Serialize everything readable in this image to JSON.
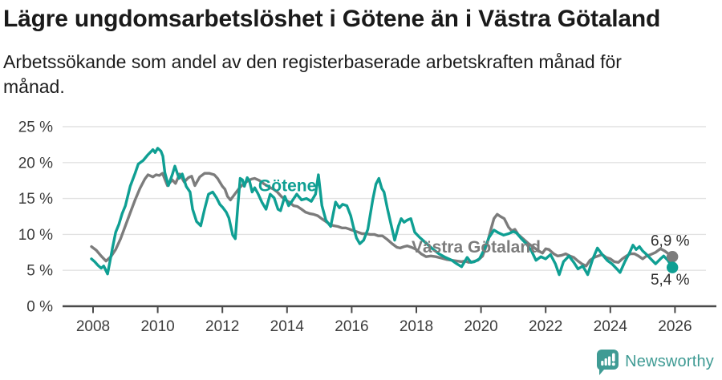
{
  "header": {
    "title": "Lägre ungdomsarbetslöshet i Götene än i Västra Götaland",
    "subtitle": "Arbetssökande som andel av den registerbaserade arbetskraften månad för månad."
  },
  "chart_data": {
    "type": "line",
    "title": "Lägre ungdomsarbetslöshet i Götene än i Västra Götaland",
    "xlabel": "",
    "ylabel": "",
    "y_unit": "%",
    "ylim": [
      0,
      25
    ],
    "xlim": [
      2007.9,
      2026.45
    ],
    "grid": "horizontal",
    "legend_position": "inline-labels",
    "x_ticks": [
      2008,
      2010,
      2012,
      2014,
      2016,
      2018,
      2020,
      2022,
      2024,
      2026
    ],
    "y_tick_labels": [
      "0 %",
      "5 %",
      "10 %",
      "15 %",
      "20 %",
      "25 %"
    ],
    "series": [
      {
        "name": "Götene",
        "color": "#0f9f93",
        "end_label": "5,4 %",
        "last_value": 5.4,
        "label_anchor": {
          "x": 2013.11,
          "y": 16.0
        },
        "end_label_anchor": {
          "x": 2026.45,
          "y": 3.0
        },
        "points": [
          [
            2007.95,
            6.6
          ],
          [
            2008.05,
            6.2
          ],
          [
            2008.15,
            5.7
          ],
          [
            2008.25,
            5.3
          ],
          [
            2008.33,
            5.6
          ],
          [
            2008.45,
            4.5
          ],
          [
            2008.52,
            6.2
          ],
          [
            2008.6,
            8.1
          ],
          [
            2008.7,
            10.3
          ],
          [
            2008.8,
            11.4
          ],
          [
            2008.9,
            12.9
          ],
          [
            2009.0,
            14.0
          ],
          [
            2009.15,
            16.7
          ],
          [
            2009.3,
            18.5
          ],
          [
            2009.4,
            19.8
          ],
          [
            2009.55,
            20.3
          ],
          [
            2009.7,
            21.1
          ],
          [
            2009.85,
            21.8
          ],
          [
            2009.92,
            21.4
          ],
          [
            2010.0,
            22.0
          ],
          [
            2010.1,
            21.6
          ],
          [
            2010.16,
            20.9
          ],
          [
            2010.22,
            18.6
          ],
          [
            2010.33,
            16.8
          ],
          [
            2010.45,
            18.3
          ],
          [
            2010.53,
            19.5
          ],
          [
            2010.66,
            17.8
          ],
          [
            2010.76,
            18.4
          ],
          [
            2010.88,
            16.7
          ],
          [
            2011.0,
            15.9
          ],
          [
            2011.08,
            13.5
          ],
          [
            2011.2,
            11.8
          ],
          [
            2011.33,
            11.2
          ],
          [
            2011.45,
            13.5
          ],
          [
            2011.57,
            15.6
          ],
          [
            2011.7,
            15.9
          ],
          [
            2011.82,
            15.1
          ],
          [
            2011.92,
            14.2
          ],
          [
            2012.02,
            13.7
          ],
          [
            2012.12,
            13.1
          ],
          [
            2012.2,
            12.3
          ],
          [
            2012.32,
            9.9
          ],
          [
            2012.4,
            9.4
          ],
          [
            2012.48,
            14.0
          ],
          [
            2012.55,
            17.8
          ],
          [
            2012.62,
            17.6
          ],
          [
            2012.68,
            16.7
          ],
          [
            2012.77,
            17.9
          ],
          [
            2012.84,
            17.4
          ],
          [
            2012.92,
            15.9
          ],
          [
            2013.0,
            16.5
          ],
          [
            2013.1,
            15.7
          ],
          [
            2013.22,
            14.5
          ],
          [
            2013.35,
            13.5
          ],
          [
            2013.48,
            15.6
          ],
          [
            2013.6,
            15.1
          ],
          [
            2013.72,
            13.5
          ],
          [
            2013.8,
            13.3
          ],
          [
            2013.93,
            15.3
          ],
          [
            2014.05,
            14.0
          ],
          [
            2014.15,
            14.6
          ],
          [
            2014.3,
            15.6
          ],
          [
            2014.45,
            14.8
          ],
          [
            2014.6,
            15.0
          ],
          [
            2014.75,
            14.6
          ],
          [
            2014.88,
            15.6
          ],
          [
            2014.97,
            18.3
          ],
          [
            2015.08,
            14.0
          ],
          [
            2015.2,
            12.0
          ],
          [
            2015.35,
            11.1
          ],
          [
            2015.5,
            14.5
          ],
          [
            2015.62,
            13.7
          ],
          [
            2015.72,
            14.2
          ],
          [
            2015.85,
            14.0
          ],
          [
            2015.97,
            12.6
          ],
          [
            2016.05,
            11.1
          ],
          [
            2016.15,
            9.5
          ],
          [
            2016.25,
            8.7
          ],
          [
            2016.37,
            9.2
          ],
          [
            2016.5,
            10.7
          ],
          [
            2016.65,
            14.8
          ],
          [
            2016.75,
            17.0
          ],
          [
            2016.84,
            17.8
          ],
          [
            2016.93,
            16.4
          ],
          [
            2017.0,
            15.9
          ],
          [
            2017.1,
            13.7
          ],
          [
            2017.2,
            11.7
          ],
          [
            2017.33,
            9.2
          ],
          [
            2017.45,
            11.2
          ],
          [
            2017.53,
            12.2
          ],
          [
            2017.62,
            11.7
          ],
          [
            2017.72,
            12.0
          ],
          [
            2017.83,
            12.2
          ],
          [
            2017.95,
            10.3
          ],
          [
            2018.1,
            9.6
          ],
          [
            2018.3,
            8.8
          ],
          [
            2018.5,
            8.0
          ],
          [
            2018.7,
            7.3
          ],
          [
            2018.9,
            6.8
          ],
          [
            2019.1,
            6.4
          ],
          [
            2019.25,
            5.9
          ],
          [
            2019.4,
            5.5
          ],
          [
            2019.57,
            6.8
          ],
          [
            2019.69,
            6.1
          ],
          [
            2019.8,
            6.2
          ],
          [
            2019.95,
            6.6
          ],
          [
            2020.1,
            7.9
          ],
          [
            2020.25,
            9.6
          ],
          [
            2020.4,
            10.6
          ],
          [
            2020.55,
            10.2
          ],
          [
            2020.7,
            9.9
          ],
          [
            2020.85,
            10.1
          ],
          [
            2021.0,
            10.4
          ],
          [
            2021.1,
            10.2
          ],
          [
            2021.25,
            9.4
          ],
          [
            2021.4,
            8.7
          ],
          [
            2021.55,
            7.8
          ],
          [
            2021.7,
            6.4
          ],
          [
            2021.85,
            6.9
          ],
          [
            2022.0,
            6.6
          ],
          [
            2022.15,
            7.2
          ],
          [
            2022.3,
            5.9
          ],
          [
            2022.42,
            4.4
          ],
          [
            2022.55,
            6.2
          ],
          [
            2022.72,
            7.0
          ],
          [
            2022.87,
            6.1
          ],
          [
            2023.0,
            5.2
          ],
          [
            2023.15,
            5.6
          ],
          [
            2023.3,
            4.4
          ],
          [
            2023.45,
            6.5
          ],
          [
            2023.6,
            8.1
          ],
          [
            2023.75,
            7.2
          ],
          [
            2023.9,
            6.4
          ],
          [
            2024.05,
            5.9
          ],
          [
            2024.2,
            5.2
          ],
          [
            2024.3,
            4.7
          ],
          [
            2024.45,
            6.2
          ],
          [
            2024.6,
            7.5
          ],
          [
            2024.7,
            8.5
          ],
          [
            2024.8,
            7.9
          ],
          [
            2024.9,
            8.3
          ],
          [
            2025.0,
            7.7
          ],
          [
            2025.1,
            7.3
          ],
          [
            2025.25,
            6.6
          ],
          [
            2025.4,
            5.9
          ],
          [
            2025.55,
            6.6
          ],
          [
            2025.65,
            7.0
          ],
          [
            2025.78,
            6.4
          ],
          [
            2025.92,
            5.4
          ]
        ]
      },
      {
        "name": "Västra Götaland",
        "color": "#7c7c7c",
        "end_label": "6,9 %",
        "last_value": 6.9,
        "label_anchor": {
          "x": 2017.85,
          "y": 7.5
        },
        "end_label_anchor": {
          "x": 2026.45,
          "y": 8.4
        },
        "points": [
          [
            2007.95,
            8.3
          ],
          [
            2008.1,
            7.8
          ],
          [
            2008.25,
            7.0
          ],
          [
            2008.4,
            6.3
          ],
          [
            2008.55,
            6.9
          ],
          [
            2008.7,
            7.9
          ],
          [
            2008.85,
            9.4
          ],
          [
            2009.0,
            11.2
          ],
          [
            2009.15,
            13.0
          ],
          [
            2009.3,
            14.8
          ],
          [
            2009.45,
            16.4
          ],
          [
            2009.6,
            17.7
          ],
          [
            2009.7,
            18.3
          ],
          [
            2009.85,
            18.0
          ],
          [
            2009.95,
            18.3
          ],
          [
            2010.05,
            18.2
          ],
          [
            2010.15,
            18.5
          ],
          [
            2010.3,
            16.8
          ],
          [
            2010.45,
            17.6
          ],
          [
            2010.55,
            17.1
          ],
          [
            2010.68,
            18.4
          ],
          [
            2010.82,
            17.3
          ],
          [
            2010.95,
            17.9
          ],
          [
            2011.05,
            18.1
          ],
          [
            2011.15,
            16.8
          ],
          [
            2011.3,
            18.0
          ],
          [
            2011.45,
            18.5
          ],
          [
            2011.6,
            18.5
          ],
          [
            2011.75,
            18.3
          ],
          [
            2011.85,
            17.8
          ],
          [
            2012.0,
            16.7
          ],
          [
            2012.08,
            16.3
          ],
          [
            2012.16,
            15.3
          ],
          [
            2012.25,
            14.8
          ],
          [
            2012.35,
            15.4
          ],
          [
            2012.45,
            16.0
          ],
          [
            2012.55,
            16.6
          ],
          [
            2012.65,
            17.0
          ],
          [
            2012.77,
            17.4
          ],
          [
            2012.9,
            17.7
          ],
          [
            2013.0,
            17.8
          ],
          [
            2013.15,
            17.5
          ],
          [
            2013.3,
            17.0
          ],
          [
            2013.45,
            16.6
          ],
          [
            2013.58,
            16.3
          ],
          [
            2013.7,
            15.9
          ],
          [
            2013.82,
            15.3
          ],
          [
            2013.95,
            14.8
          ],
          [
            2014.07,
            14.5
          ],
          [
            2014.2,
            14.0
          ],
          [
            2014.32,
            13.9
          ],
          [
            2014.45,
            13.5
          ],
          [
            2014.57,
            13.1
          ],
          [
            2014.7,
            12.9
          ],
          [
            2014.82,
            12.8
          ],
          [
            2014.95,
            12.6
          ],
          [
            2015.07,
            12.2
          ],
          [
            2015.2,
            11.8
          ],
          [
            2015.32,
            11.4
          ],
          [
            2015.45,
            11.2
          ],
          [
            2015.57,
            11.1
          ],
          [
            2015.7,
            10.9
          ],
          [
            2015.82,
            10.9
          ],
          [
            2015.95,
            10.7
          ],
          [
            2016.07,
            10.5
          ],
          [
            2016.2,
            10.3
          ],
          [
            2016.32,
            10.1
          ],
          [
            2016.45,
            10.1
          ],
          [
            2016.57,
            10.0
          ],
          [
            2016.7,
            10.0
          ],
          [
            2016.82,
            9.8
          ],
          [
            2016.95,
            9.8
          ],
          [
            2017.1,
            9.3
          ],
          [
            2017.25,
            8.7
          ],
          [
            2017.4,
            8.2
          ],
          [
            2017.5,
            8.1
          ],
          [
            2017.62,
            8.3
          ],
          [
            2017.72,
            8.4
          ],
          [
            2017.85,
            8.2
          ],
          [
            2018.0,
            7.9
          ],
          [
            2018.15,
            7.3
          ],
          [
            2018.3,
            6.9
          ],
          [
            2018.45,
            7.0
          ],
          [
            2018.6,
            6.9
          ],
          [
            2018.78,
            6.7
          ],
          [
            2018.95,
            6.5
          ],
          [
            2019.1,
            6.4
          ],
          [
            2019.25,
            6.3
          ],
          [
            2019.4,
            6.2
          ],
          [
            2019.5,
            6.3
          ],
          [
            2019.62,
            6.1
          ],
          [
            2019.75,
            6.2
          ],
          [
            2019.9,
            6.4
          ],
          [
            2020.05,
            7.0
          ],
          [
            2020.18,
            8.6
          ],
          [
            2020.3,
            10.6
          ],
          [
            2020.4,
            12.2
          ],
          [
            2020.5,
            12.8
          ],
          [
            2020.6,
            12.5
          ],
          [
            2020.72,
            12.2
          ],
          [
            2020.85,
            11.0
          ],
          [
            2020.95,
            10.5
          ],
          [
            2021.05,
            10.7
          ],
          [
            2021.15,
            10.0
          ],
          [
            2021.3,
            9.4
          ],
          [
            2021.45,
            8.8
          ],
          [
            2021.6,
            8.3
          ],
          [
            2021.75,
            7.8
          ],
          [
            2021.9,
            7.4
          ],
          [
            2022.0,
            8.0
          ],
          [
            2022.1,
            7.9
          ],
          [
            2022.25,
            7.3
          ],
          [
            2022.37,
            7.0
          ],
          [
            2022.5,
            7.1
          ],
          [
            2022.62,
            7.3
          ],
          [
            2022.75,
            7.0
          ],
          [
            2022.87,
            6.8
          ],
          [
            2023.0,
            6.3
          ],
          [
            2023.12,
            5.9
          ],
          [
            2023.25,
            5.6
          ],
          [
            2023.37,
            6.4
          ],
          [
            2023.5,
            6.8
          ],
          [
            2023.62,
            7.0
          ],
          [
            2023.75,
            7.2
          ],
          [
            2023.87,
            6.8
          ],
          [
            2024.0,
            6.6
          ],
          [
            2024.12,
            6.2
          ],
          [
            2024.25,
            6.1
          ],
          [
            2024.37,
            6.6
          ],
          [
            2024.5,
            7.0
          ],
          [
            2024.62,
            7.3
          ],
          [
            2024.75,
            7.3
          ],
          [
            2024.87,
            7.0
          ],
          [
            2025.0,
            6.6
          ],
          [
            2025.12,
            7.0
          ],
          [
            2025.25,
            7.2
          ],
          [
            2025.4,
            7.5
          ],
          [
            2025.55,
            8.0
          ],
          [
            2025.68,
            7.7
          ],
          [
            2025.8,
            7.3
          ],
          [
            2025.92,
            6.9
          ]
        ]
      }
    ]
  },
  "footer": {
    "brand": "Newsworthy",
    "brand_color": "#3f9b94"
  }
}
